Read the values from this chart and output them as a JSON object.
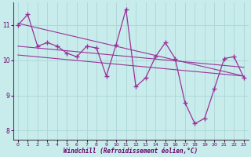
{
  "xlabel": "Windchill (Refroidissement éolien,°C)",
  "background_color": "#c8ecec",
  "grid_color": "#b0d8d8",
  "line_color": "#993399",
  "axis_bar_color": "#660066",
  "x_values": [
    0,
    1,
    2,
    3,
    4,
    5,
    6,
    7,
    8,
    9,
    10,
    11,
    12,
    13,
    14,
    15,
    16,
    17,
    18,
    19,
    20,
    21,
    22,
    23
  ],
  "y_main": [
    11.0,
    11.3,
    10.4,
    10.5,
    10.4,
    10.2,
    10.1,
    10.4,
    10.35,
    9.55,
    10.45,
    11.45,
    9.25,
    9.5,
    10.1,
    10.5,
    10.05,
    8.8,
    8.2,
    8.35,
    9.2,
    10.05,
    10.1,
    9.5
  ],
  "trend1": [
    11.05,
    9.55
  ],
  "trend2": [
    10.4,
    9.8
  ],
  "trend3": [
    10.15,
    9.55
  ],
  "ylim": [
    7.75,
    11.65
  ],
  "xlim": [
    -0.5,
    23.5
  ],
  "yticks": [
    8,
    9,
    10,
    11
  ],
  "xticks": [
    0,
    1,
    2,
    3,
    4,
    5,
    6,
    7,
    8,
    9,
    10,
    11,
    12,
    13,
    14,
    15,
    16,
    17,
    18,
    19,
    20,
    21,
    22,
    23
  ]
}
